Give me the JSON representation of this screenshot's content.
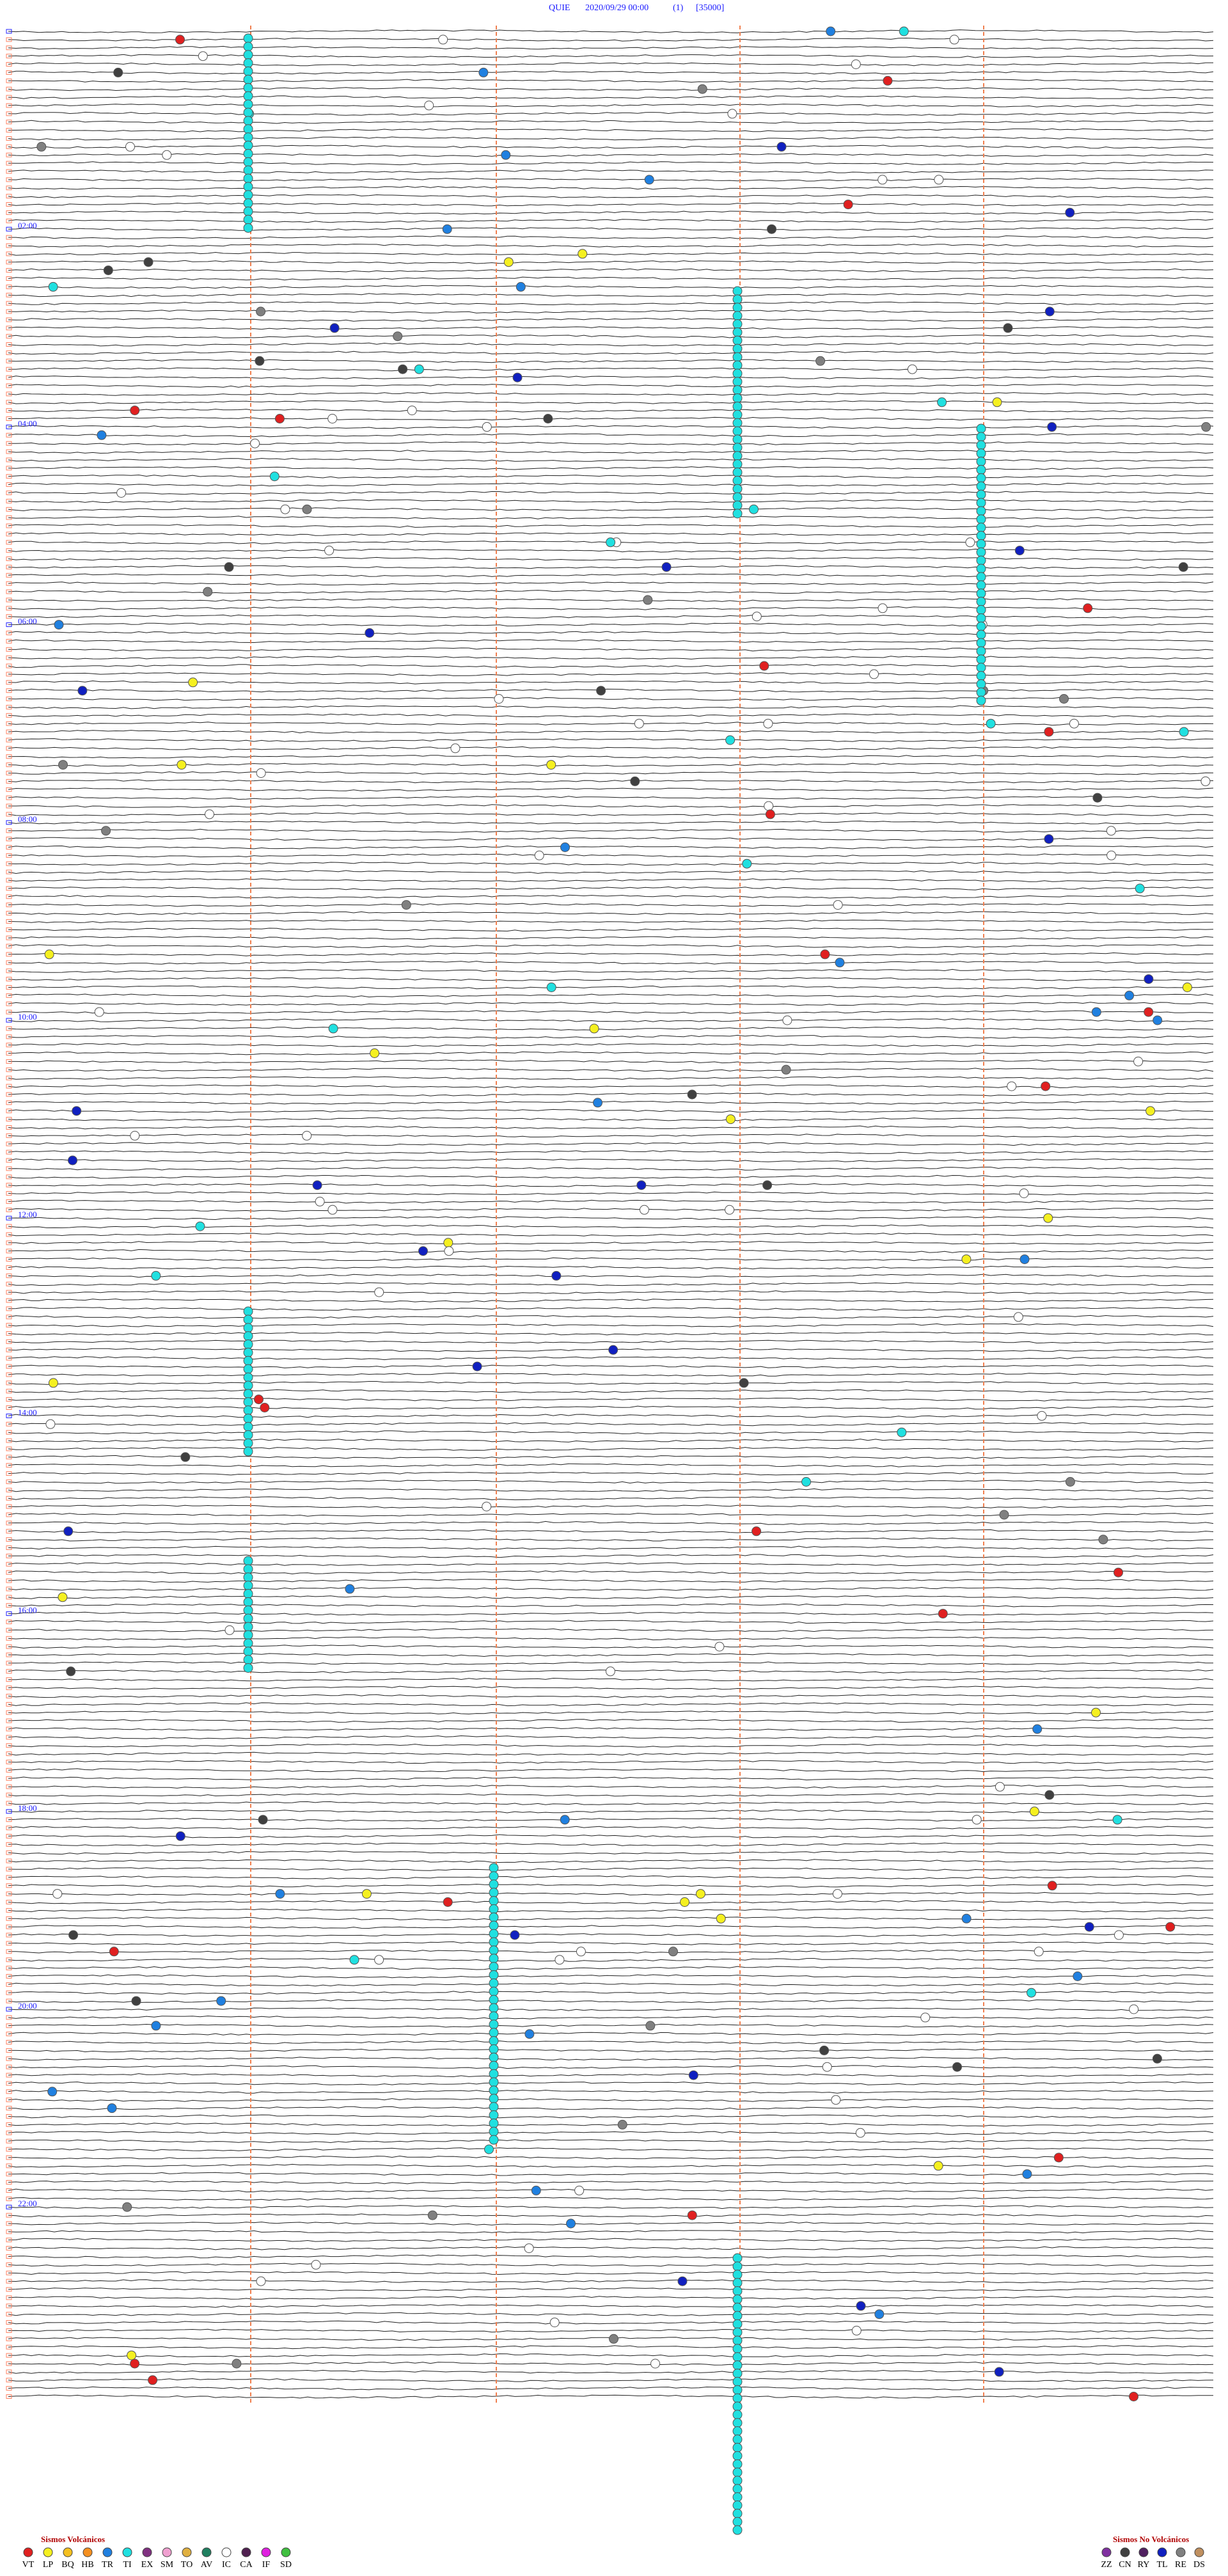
{
  "header": {
    "station": "QUIE",
    "datetime": "2020/09/29 00:00",
    "channel": "(1)",
    "scale": "[35000]"
  },
  "hour_labels": [
    "02:00",
    "04:00",
    "06:00",
    "08:00",
    "10:00",
    "12:00",
    "14:00",
    "16:00",
    "18:00",
    "20:00",
    "22:00"
  ],
  "legend_volcanic": {
    "title": "Sismos Volcánicos",
    "items": [
      {
        "code": "VT",
        "color": "#e02020"
      },
      {
        "code": "LP",
        "color": "#f5f020"
      },
      {
        "code": "BQ",
        "color": "#f5c020"
      },
      {
        "code": "HB",
        "color": "#f59020"
      },
      {
        "code": "TR",
        "color": "#2080e0"
      },
      {
        "code": "TI",
        "color": "#20e0e0"
      },
      {
        "code": "EX",
        "color": "#803080"
      },
      {
        "code": "SM",
        "color": "#f0a0d0"
      },
      {
        "code": "TO",
        "color": "#e0b040"
      },
      {
        "code": "AV",
        "color": "#208060"
      },
      {
        "code": "IC",
        "color": "#ffffff"
      },
      {
        "code": "CA",
        "color": "#502050"
      },
      {
        "code": "IF",
        "color": "#e020e0"
      },
      {
        "code": "SD",
        "color": "#40c040"
      }
    ]
  },
  "legend_non_volcanic": {
    "title": "Sismos No Volcánicos",
    "items": [
      {
        "code": "ZZ",
        "color": "#8030a0"
      },
      {
        "code": "CN",
        "color": "#404040"
      },
      {
        "code": "RY",
        "color": "#502060"
      },
      {
        "code": "TL",
        "color": "#1020c0"
      },
      {
        "code": "RE",
        "color": "#808080"
      },
      {
        "code": "DS",
        "color": "#c09060"
      }
    ]
  }
}
